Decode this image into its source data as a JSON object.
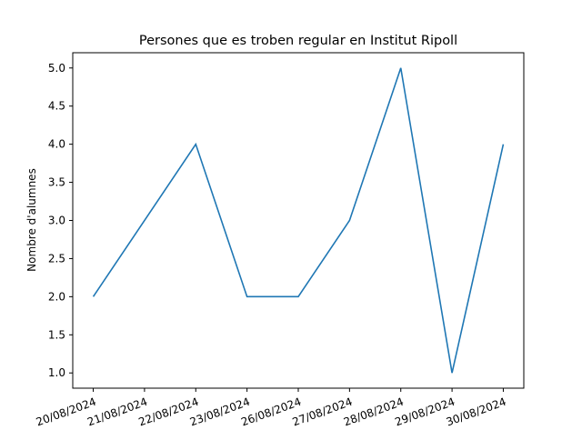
{
  "chart_data": {
    "type": "line",
    "title": "Persones que es troben regular en Institut Ripoll",
    "xlabel": "",
    "ylabel": "Nombre d'alumnes",
    "categories": [
      "20/08/2024",
      "21/08/2024",
      "22/08/2024",
      "23/08/2024",
      "26/08/2024",
      "27/08/2024",
      "28/08/2024",
      "29/08/2024",
      "30/08/2024"
    ],
    "x_positions": [
      0,
      1,
      2,
      3,
      4,
      5,
      6,
      7,
      8
    ],
    "series": [
      {
        "x": [
          0,
          2,
          3,
          4,
          5,
          6,
          7,
          8
        ],
        "values": [
          2,
          4,
          2,
          2,
          3,
          5,
          1,
          4
        ],
        "color": "#1f77b4"
      }
    ],
    "ylim": [
      0.8,
      5.2
    ],
    "xlim": [
      -0.4,
      8.4
    ],
    "yticks": [
      "1.0",
      "1.5",
      "2.0",
      "2.5",
      "3.0",
      "3.5",
      "4.0",
      "4.5",
      "5.0"
    ],
    "grid": false,
    "legend": "none"
  }
}
